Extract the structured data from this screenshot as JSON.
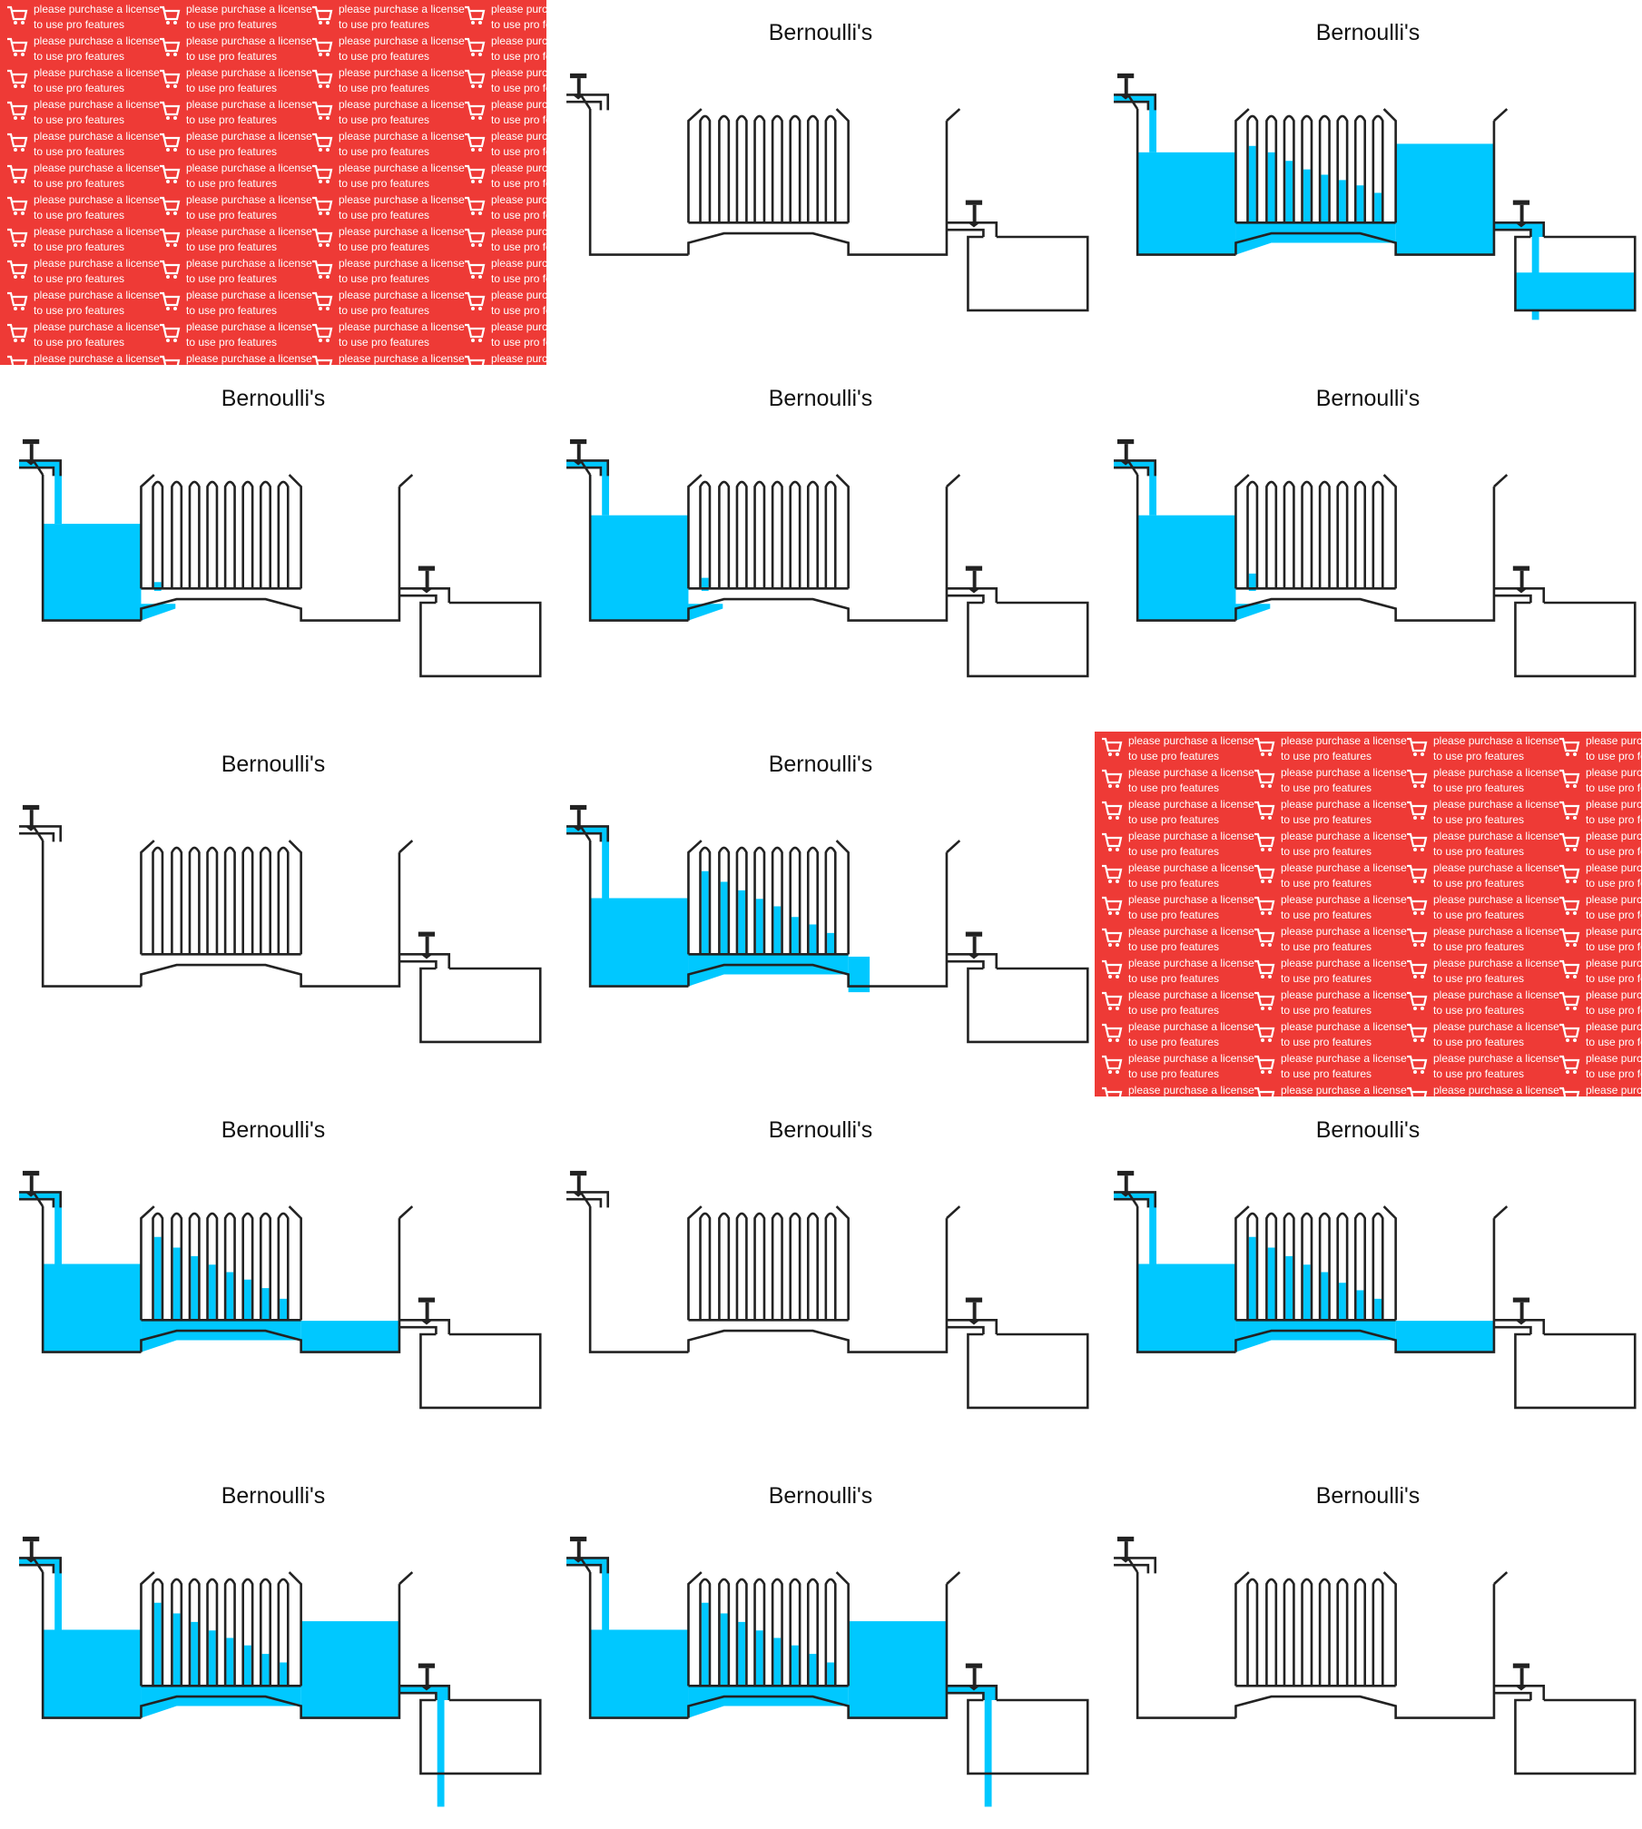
{
  "colors": {
    "water": "#00c8ff",
    "outline": "#222222",
    "watermark_bg": "#ee3a36",
    "watermark_text": "#ffffff"
  },
  "watermark": {
    "line1": "please purchase a license",
    "line2": "to use pro features",
    "icon": "shopping-cart-icon"
  },
  "panels": [
    {
      "type": "watermark"
    },
    {
      "type": "diagram",
      "title": "Bernoulli's",
      "tap": false,
      "left_level": 0,
      "tube_levels": [
        0,
        0,
        0,
        0,
        0,
        0,
        0,
        0
      ],
      "channel": "none",
      "right_level": 0,
      "valve_flow": false,
      "tank_level": 0,
      "stream": false
    },
    {
      "type": "diagram",
      "title": "Bernoulli's",
      "tap": true,
      "left_level": 0.72,
      "tube_levels": [
        0.72,
        0.66,
        0.58,
        0.5,
        0.45,
        0.4,
        0.35,
        0.28
      ],
      "channel": "full",
      "right_level": 0.78,
      "valve_flow": true,
      "tank_level": 0.55,
      "stream": true
    },
    {
      "type": "diagram",
      "title": "Bernoulli's",
      "tap": true,
      "left_level": 0.68,
      "tube_levels": [
        0.06,
        0,
        0,
        0,
        0,
        0,
        0,
        0
      ],
      "channel": "partial",
      "right_level": 0,
      "valve_flow": false,
      "tank_level": 0,
      "stream": false
    },
    {
      "type": "diagram",
      "title": "Bernoulli's",
      "tap": true,
      "left_level": 0.74,
      "tube_levels": [
        0.1,
        0,
        0,
        0,
        0,
        0,
        0,
        0
      ],
      "channel": "partial",
      "right_level": 0,
      "valve_flow": false,
      "tank_level": 0,
      "stream": false
    },
    {
      "type": "diagram",
      "title": "Bernoulli's",
      "tap": true,
      "left_level": 0.74,
      "tube_levels": [
        0.14,
        0,
        0,
        0,
        0,
        0,
        0,
        0
      ],
      "channel": "partial",
      "right_level": 0,
      "valve_flow": false,
      "tank_level": 0,
      "stream": false
    },
    {
      "type": "diagram",
      "title": "Bernoulli's",
      "tap": false,
      "left_level": 0,
      "tube_levels": [
        0,
        0,
        0,
        0,
        0,
        0,
        0,
        0
      ],
      "channel": "none",
      "right_level": 0,
      "valve_flow": false,
      "tank_level": 0,
      "stream": false
    },
    {
      "type": "diagram",
      "title": "Bernoulli's",
      "tap": true,
      "left_level": 0.62,
      "tube_levels": [
        0.78,
        0.68,
        0.6,
        0.52,
        0.45,
        0.35,
        0.28,
        0.2
      ],
      "channel": "full",
      "right_level": 0,
      "valve_flow": false,
      "tank_level": 0,
      "stream": false,
      "overflow": true
    },
    {
      "type": "watermark"
    },
    {
      "type": "diagram",
      "title": "Bernoulli's",
      "tap": true,
      "left_level": 0.62,
      "tube_levels": [
        0.78,
        0.68,
        0.6,
        0.52,
        0.45,
        0.38,
        0.3,
        0.2
      ],
      "channel": "full",
      "right_level": 0.22,
      "valve_flow": false,
      "tank_level": 0,
      "stream": false
    },
    {
      "type": "diagram",
      "title": "Bernoulli's",
      "tap": false,
      "left_level": 0,
      "tube_levels": [
        0,
        0,
        0,
        0,
        0,
        0,
        0,
        0
      ],
      "channel": "none",
      "right_level": 0,
      "valve_flow": false,
      "tank_level": 0,
      "stream": false
    },
    {
      "type": "diagram",
      "title": "Bernoulli's",
      "tap": true,
      "left_level": 0.62,
      "tube_levels": [
        0.78,
        0.68,
        0.6,
        0.52,
        0.45,
        0.35,
        0.28,
        0.2
      ],
      "channel": "full",
      "right_level": 0.22,
      "valve_flow": false,
      "tank_level": 0,
      "stream": false
    },
    {
      "type": "diagram",
      "title": "Bernoulli's",
      "tap": true,
      "left_level": 0.62,
      "tube_levels": [
        0.78,
        0.68,
        0.6,
        0.52,
        0.45,
        0.38,
        0.3,
        0.22
      ],
      "channel": "full",
      "right_level": 0.68,
      "valve_flow": true,
      "tank_level": 0,
      "stream": true
    },
    {
      "type": "diagram",
      "title": "Bernoulli's",
      "tap": true,
      "left_level": 0.62,
      "tube_levels": [
        0.78,
        0.68,
        0.6,
        0.52,
        0.45,
        0.38,
        0.3,
        0.22
      ],
      "channel": "full",
      "right_level": 0.68,
      "valve_flow": true,
      "tank_level": 0,
      "stream": true
    },
    {
      "type": "diagram",
      "title": "Bernoulli's",
      "tap": false,
      "left_level": 0,
      "tube_levels": [
        0,
        0,
        0,
        0,
        0,
        0,
        0,
        0
      ],
      "channel": "none",
      "right_level": 0,
      "valve_flow": false,
      "tank_level": 0,
      "stream": false
    }
  ]
}
